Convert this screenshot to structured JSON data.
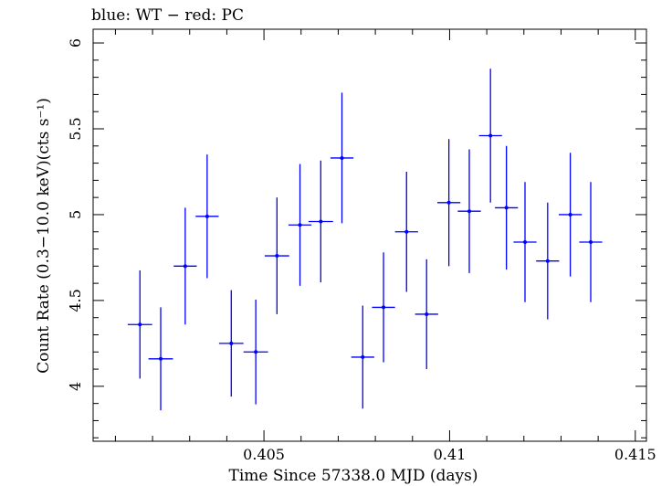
{
  "chart_data": {
    "type": "scatter",
    "title": "blue: WT − red: PC",
    "xlabel": "Time Since 57338.0 MJD (days)",
    "ylabel": "Count Rate (0.3−10.0 keV)(cts s⁻¹)",
    "xlim": [
      0.4004,
      0.4153
    ],
    "ylim": [
      3.68,
      6.08
    ],
    "x_ticks": [
      {
        "value": 0.405,
        "label": "0.405"
      },
      {
        "value": 0.41,
        "label": "0.41"
      },
      {
        "value": 0.415,
        "label": "0.415"
      }
    ],
    "y_ticks": [
      {
        "value": 4,
        "label": "4"
      },
      {
        "value": 4.5,
        "label": "4.5"
      },
      {
        "value": 5,
        "label": "5"
      },
      {
        "value": 5.5,
        "label": "5.5"
      },
      {
        "value": 6,
        "label": "6"
      }
    ],
    "grid": false,
    "series": [
      {
        "color": "#0000ff",
        "points": [
          {
            "x": 0.40166,
            "xerr": 0.00033,
            "y": 4.36,
            "yerr": 0.315
          },
          {
            "x": 0.40222,
            "xerr": 0.00033,
            "y": 4.16,
            "yerr": 0.3
          },
          {
            "x": 0.40288,
            "xerr": 0.00031,
            "y": 4.7,
            "yerr": 0.34
          },
          {
            "x": 0.40347,
            "xerr": 0.00031,
            "y": 4.99,
            "yerr": 0.36
          },
          {
            "x": 0.40412,
            "xerr": 0.00033,
            "y": 4.25,
            "yerr": 0.31
          },
          {
            "x": 0.40478,
            "xerr": 0.00033,
            "y": 4.2,
            "yerr": 0.305
          },
          {
            "x": 0.40535,
            "xerr": 0.00033,
            "y": 4.76,
            "yerr": 0.34
          },
          {
            "x": 0.40597,
            "xerr": 0.00031,
            "y": 4.94,
            "yerr": 0.355
          },
          {
            "x": 0.40653,
            "xerr": 0.00033,
            "y": 4.96,
            "yerr": 0.355
          },
          {
            "x": 0.4071,
            "xerr": 0.00031,
            "y": 5.33,
            "yerr": 0.38
          },
          {
            "x": 0.40766,
            "xerr": 0.00031,
            "y": 4.17,
            "yerr": 0.3
          },
          {
            "x": 0.40822,
            "xerr": 0.00031,
            "y": 4.46,
            "yerr": 0.32
          },
          {
            "x": 0.40884,
            "xerr": 0.00031,
            "y": 4.9,
            "yerr": 0.35
          },
          {
            "x": 0.40938,
            "xerr": 0.00031,
            "y": 4.42,
            "yerr": 0.32
          },
          {
            "x": 0.40998,
            "xerr": 0.00031,
            "y": 5.07,
            "yerr": 0.37
          },
          {
            "x": 0.41053,
            "xerr": 0.00031,
            "y": 5.02,
            "yerr": 0.36
          },
          {
            "x": 0.4111,
            "xerr": 0.00031,
            "y": 5.46,
            "yerr": 0.39
          },
          {
            "x": 0.41153,
            "xerr": 0.00031,
            "y": 5.04,
            "yerr": 0.36
          },
          {
            "x": 0.41203,
            "xerr": 0.00031,
            "y": 4.84,
            "yerr": 0.35
          },
          {
            "x": 0.41264,
            "xerr": 0.00031,
            "y": 4.73,
            "yerr": 0.34
          },
          {
            "x": 0.41325,
            "xerr": 0.00031,
            "y": 5.0,
            "yerr": 0.36
          },
          {
            "x": 0.4138,
            "xerr": 0.00031,
            "y": 4.84,
            "yerr": 0.35
          }
        ]
      }
    ]
  }
}
